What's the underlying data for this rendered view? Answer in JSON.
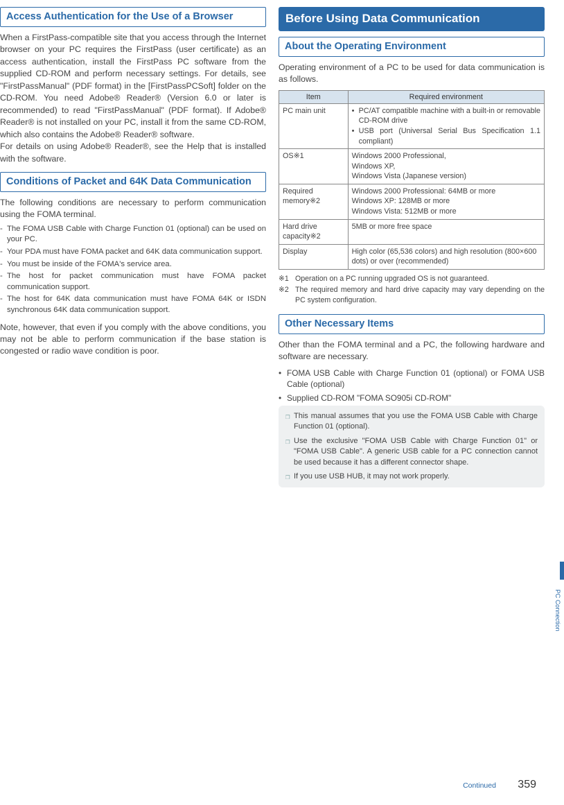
{
  "left": {
    "h_access": "Access Authentication for the Use of a Browser",
    "access_body": "When a FirstPass-compatible site that you access through the Internet browser on your PC requires the FirstPass (user certificate) as an access authentication, install the FirstPass PC software from the supplied CD-ROM and perform necessary settings. For details, see \"FirstPassManual\" (PDF format) in the [FirstPassPCSoft] folder on the CD-ROM. You need Adobe® Reader® (Version 6.0 or later is recommended) to read \"FirstPassManual\" (PDF format). If Adobe® Reader® is not installed on your PC, install it from the same CD-ROM, which also contains the Adobe® Reader® software.\nFor details on using Adobe® Reader®, see the Help that is installed with the software.",
    "h_cond": "Conditions of Packet and 64K Data Communication",
    "cond_intro": "The following conditions are necessary to perform communication using the FOMA terminal.",
    "cond_items": [
      "The FOMA USB Cable with Charge Function 01 (optional) can be used on your PC.",
      "Your PDA must have FOMA packet and 64K data communication support.",
      "You must be inside of the FOMA's service area.",
      "The host for packet communication must have FOMA packet communication support.",
      "The host for 64K data communication must have FOMA 64K or ISDN synchronous 64K data communication support."
    ],
    "cond_outro": "Note, however, that even if you comply with the above conditions, you may not be able to perform communication if the base station is congested or radio wave condition is poor."
  },
  "right": {
    "h_before": "Before Using Data Communication",
    "h_about": "About the Operating Environment",
    "about_intro": "Operating environment of a PC to be used for data communication is as follows.",
    "table": {
      "header": [
        "Item",
        "Required environment"
      ],
      "rows": [
        {
          "item": "PC main unit",
          "env_bullets": [
            "PC/AT compatible machine with a built-in or removable CD-ROM drive",
            "USB port (Universal Serial Bus Specification 1.1 compliant)"
          ]
        },
        {
          "item": "OS※1",
          "env_text": "Windows 2000 Professional,\nWindows XP,\nWindows Vista (Japanese version)"
        },
        {
          "item": "Required memory※2",
          "env_text": "Windows 2000 Professional: 64MB or more\nWindows XP: 128MB or more\nWindows Vista: 512MB or more"
        },
        {
          "item": "Hard drive capacity※2",
          "env_text": "5MB or more free space"
        },
        {
          "item": "Display",
          "env_text": "High color (65,536 colors) and high resolution (800×600 dots) or over (recommended)"
        }
      ]
    },
    "fn1_k": "※1",
    "fn1_v": "Operation on a PC running upgraded OS is not guaranteed.",
    "fn2_k": "※2",
    "fn2_v": "The required memory and hard drive capacity may vary depending on the PC system configuration.",
    "h_other": "Other Necessary Items",
    "other_intro": "Other than the FOMA terminal and a PC, the following hardware and software are necessary.",
    "other_items": [
      "FOMA USB Cable with Charge Function 01 (optional) or FOMA USB Cable (optional)",
      "Supplied CD-ROM \"FOMA SO905i CD-ROM\""
    ],
    "callout": [
      "This manual assumes that you use the FOMA USB Cable with Charge Function 01 (optional).",
      "Use the exclusive \"FOMA USB Cable with Charge Function 01\" or \"FOMA USB Cable\". A generic USB cable for a PC connection cannot be used because it has a different connector shape.",
      "If you use USB HUB, it may not work properly."
    ]
  },
  "footer": {
    "continued": "Continued",
    "page": "359"
  },
  "sidetab": "PC Connection"
}
